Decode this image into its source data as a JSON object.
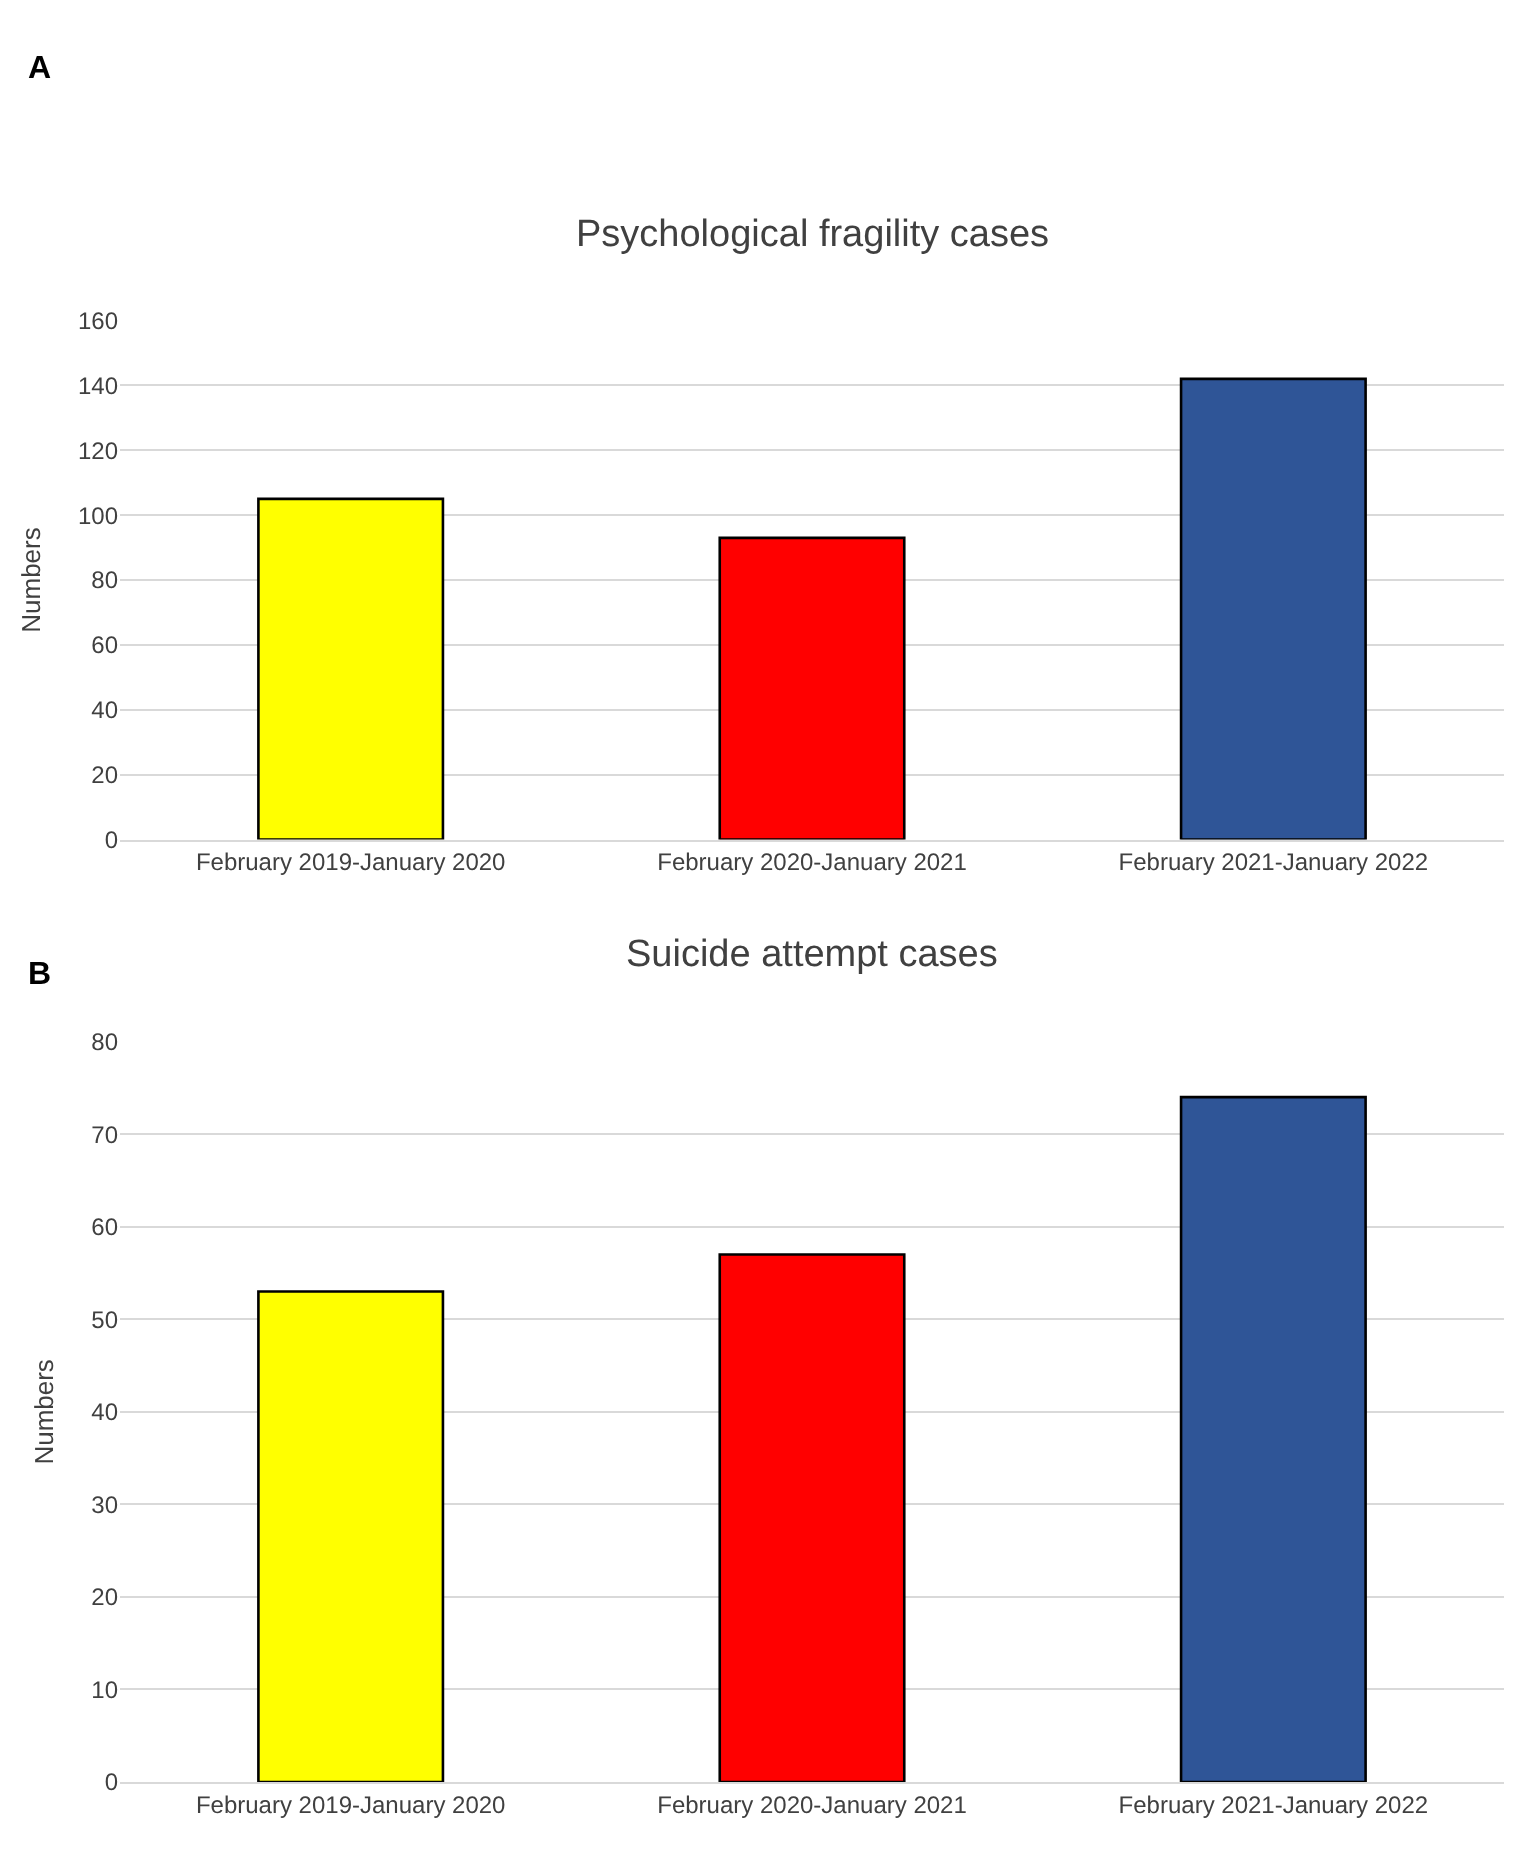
{
  "chart_data": [
    {
      "type": "bar",
      "title": "Psychological fragility cases",
      "ylabel": "Numbers",
      "categories": [
        "February 2019-January 2020",
        "February 2020-January 2021",
        "February 2021-January 2022"
      ],
      "values": [
        105,
        93,
        142
      ],
      "colors": [
        "#ffff00",
        "#ff0000",
        "#2f5597"
      ],
      "ylim": [
        0,
        160
      ],
      "yticks": [
        0,
        20,
        40,
        60,
        80,
        100,
        120,
        140,
        160
      ],
      "grid": "y",
      "annotations": [
        "A"
      ]
    },
    {
      "type": "bar",
      "title": "Suicide attempt cases",
      "ylabel": "Numbers",
      "categories": [
        "February 2019-January 2020",
        "February 2020-January 2021",
        "February 2021-January 2022"
      ],
      "values": [
        53,
        57,
        74
      ],
      "colors": [
        "#ffff00",
        "#ff0000",
        "#2f5597"
      ],
      "ylim": [
        0,
        80
      ],
      "yticks": [
        0,
        10,
        20,
        30,
        40,
        50,
        60,
        70,
        80
      ],
      "grid": "y",
      "annotations": [
        "B"
      ]
    }
  ]
}
